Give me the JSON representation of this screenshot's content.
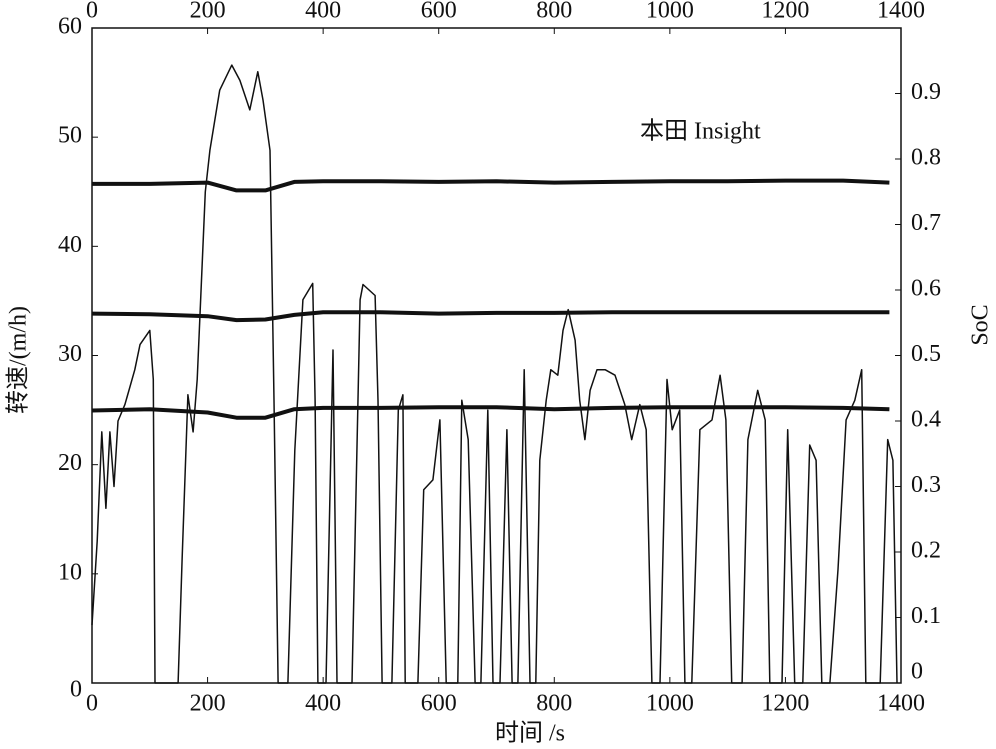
{
  "chart_data": {
    "type": "line",
    "annotation": "本田 Insight",
    "xlabel": "时间 /s",
    "ylabel": "转速/(m/h)",
    "y2label": "SoC",
    "xlim": [
      0,
      1400
    ],
    "xticks": [
      0,
      200,
      400,
      600,
      800,
      1000,
      1200,
      1400
    ],
    "ylim": [
      0,
      60
    ],
    "yticks": [
      0,
      10,
      20,
      30,
      40,
      50,
      60
    ],
    "y2lim": [
      0,
      1.0
    ],
    "y2ticks": [
      0,
      0.1,
      0.2,
      0.3,
      0.4,
      0.5,
      0.6,
      0.7,
      0.8,
      0.9
    ],
    "series": [
      {
        "color": "#111111",
        "x": [
          0,
          9,
          17,
          24,
          31,
          38,
          45,
          57,
          74,
          83,
          100,
          106,
          109,
          149,
          156,
          166,
          175,
          182,
          196,
          204,
          221,
          242,
          256,
          273,
          287,
          296,
          308,
          315,
          322,
          339,
          351,
          365,
          382,
          386,
          391,
          405,
          417,
          424,
          450,
          464,
          469,
          490,
          495,
          502,
          519,
          530,
          538,
          542,
          564,
          574,
          590,
          602,
          613,
          633,
          640,
          651,
          663,
          673,
          685,
          694,
          706,
          718,
          727,
          737,
          748,
          758,
          768,
          775,
          786,
          794,
          806,
          815,
          824,
          836,
          844,
          853,
          862,
          874,
          888,
          905,
          922,
          934,
          948,
          959,
          969,
          983,
          995,
          1004,
          1017,
          1026,
          1038,
          1052,
          1073,
          1087,
          1097,
          1107,
          1125,
          1135,
          1152,
          1165,
          1173,
          1194,
          1204,
          1216,
          1230,
          1242,
          1253,
          1263,
          1277,
          1291,
          1305,
          1320,
          1332,
          1339,
          1364,
          1377,
          1386,
          1393
        ],
        "values": [
          5.3,
          13,
          23,
          16,
          23,
          18,
          24,
          25.5,
          28.7,
          31,
          32.3,
          27.8,
          0,
          0,
          11.3,
          26.4,
          23,
          27.8,
          45,
          48.8,
          54.3,
          56.6,
          55.2,
          52.5,
          56,
          53.4,
          48.8,
          25.9,
          0,
          0,
          21.3,
          35.1,
          36.6,
          25.9,
          0,
          0,
          30.5,
          0,
          0,
          35.1,
          36.5,
          35.5,
          25.9,
          0,
          0,
          25,
          26.4,
          0,
          0,
          17.7,
          18.6,
          24.1,
          0,
          0,
          25.9,
          22.3,
          0,
          0,
          25,
          0,
          0,
          23.2,
          0,
          0,
          28.7,
          0,
          0,
          20.4,
          25.9,
          28.7,
          28.2,
          32.3,
          34.2,
          31.4,
          25.9,
          22.3,
          26.8,
          28.7,
          28.7,
          28.2,
          25.5,
          22.3,
          25.5,
          23.2,
          0,
          0,
          27.8,
          23.2,
          25,
          0,
          0,
          23.2,
          24.1,
          28.2,
          24.1,
          0,
          0,
          22.3,
          26.8,
          24.1,
          0,
          0,
          23.2,
          0,
          0,
          21.8,
          20.4,
          0,
          0,
          10.4,
          24.1,
          25.9,
          28.7,
          0,
          0,
          22.3,
          20.4,
          0
        ]
      },
      {
        "color": "#111111",
        "axis": "y2",
        "x": [
          0,
          100,
          200,
          250,
          300,
          350,
          400,
          500,
          600,
          700,
          800,
          900,
          1000,
          1100,
          1200,
          1300,
          1380
        ],
        "values": [
          0.762,
          0.762,
          0.764,
          0.752,
          0.752,
          0.765,
          0.766,
          0.766,
          0.765,
          0.766,
          0.764,
          0.765,
          0.766,
          0.766,
          0.767,
          0.767,
          0.764
        ]
      },
      {
        "color": "#111111",
        "axis": "y2",
        "x": [
          0,
          100,
          200,
          250,
          300,
          350,
          400,
          500,
          600,
          700,
          800,
          900,
          1000,
          1100,
          1200,
          1300,
          1380
        ],
        "values": [
          0.564,
          0.563,
          0.56,
          0.554,
          0.555,
          0.562,
          0.566,
          0.566,
          0.564,
          0.565,
          0.565,
          0.566,
          0.566,
          0.566,
          0.566,
          0.566,
          0.566
        ]
      },
      {
        "color": "#111111",
        "axis": "y2",
        "x": [
          0,
          100,
          200,
          250,
          300,
          350,
          400,
          500,
          600,
          700,
          800,
          900,
          1000,
          1100,
          1200,
          1300,
          1380
        ],
        "values": [
          0.416,
          0.418,
          0.413,
          0.405,
          0.405,
          0.418,
          0.42,
          0.42,
          0.421,
          0.421,
          0.418,
          0.42,
          0.421,
          0.421,
          0.421,
          0.42,
          0.418
        ]
      }
    ]
  }
}
